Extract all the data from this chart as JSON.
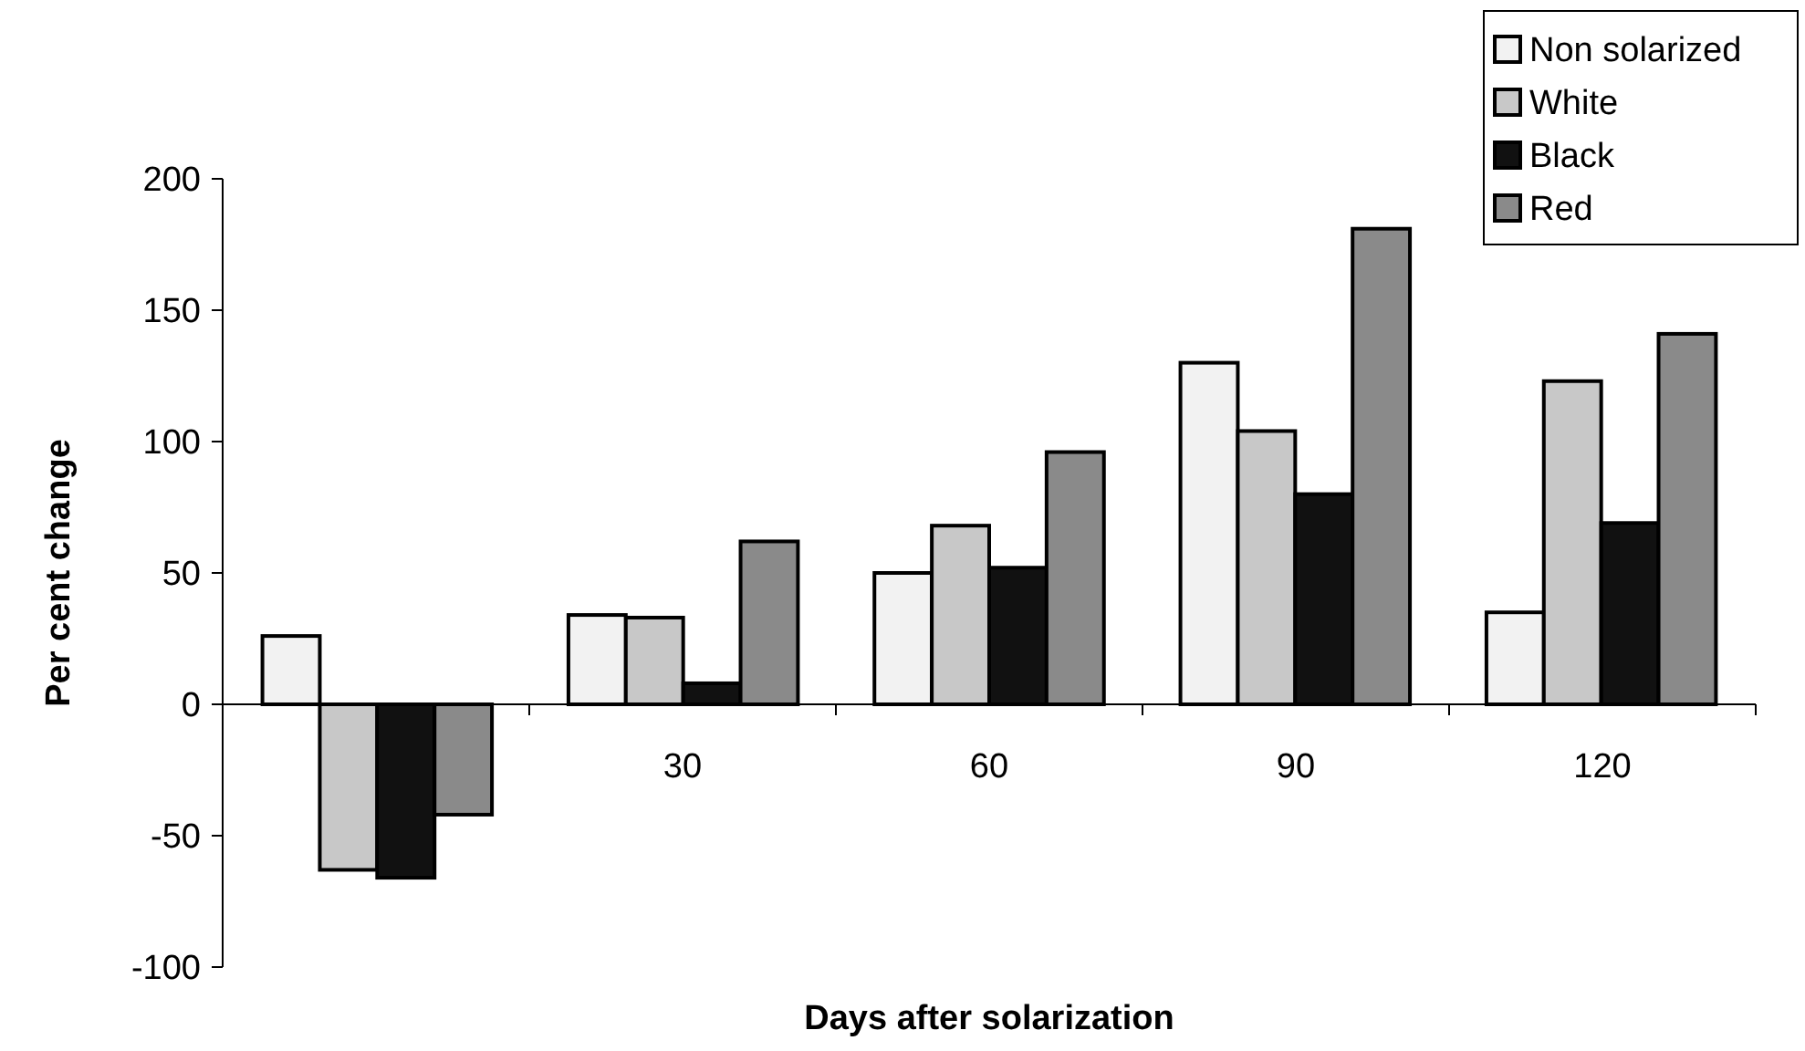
{
  "chart_data": {
    "type": "bar",
    "xlabel": "Days after solarization",
    "ylabel": "Per cent change",
    "categories": [
      null,
      "30",
      "60",
      "90",
      "120"
    ],
    "series": [
      {
        "name": "Non solarized",
        "color": "#f2f2f2",
        "values": [
          26,
          34,
          50,
          130,
          35
        ]
      },
      {
        "name": "White",
        "color": "#c8c8c8",
        "values": [
          -63,
          33,
          68,
          104,
          123
        ]
      },
      {
        "name": "Black",
        "color": "#111111",
        "values": [
          -66,
          8,
          52,
          80,
          69
        ]
      },
      {
        "name": "Red",
        "color": "#8a8a8a",
        "values": [
          -42,
          62,
          96,
          181,
          141
        ]
      }
    ],
    "ylim": [
      -100,
      200
    ],
    "yticks": [
      -100,
      -50,
      0,
      50,
      100,
      150,
      200
    ],
    "grid": false,
    "legend": "top right"
  }
}
